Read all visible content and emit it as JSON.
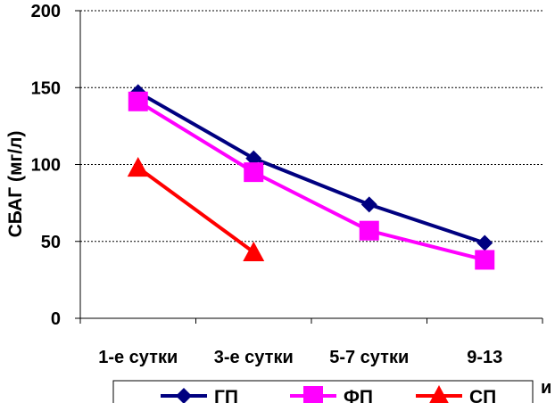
{
  "chart_data": {
    "type": "line",
    "categories": [
      "1-е сутки",
      "3-е сутки",
      "5-7 сутки",
      "9-13"
    ],
    "clipped_suffix": "и",
    "ylabel": "СБАГ (мг/л)",
    "ylim": [
      0,
      200
    ],
    "yticks": [
      "0",
      "50",
      "100",
      "150",
      "200"
    ],
    "grid": true,
    "legend_position": "bottom",
    "series": [
      {
        "name": "ГП",
        "color": "#000080",
        "marker": "diamond",
        "values": [
          147,
          104,
          74,
          49
        ]
      },
      {
        "name": "ФП",
        "color": "#FF00FF",
        "marker": "square",
        "values": [
          141,
          95,
          57,
          38
        ]
      },
      {
        "name": "СП",
        "color": "#FF0000",
        "marker": "triangle",
        "values": [
          98,
          43,
          null,
          null
        ]
      }
    ]
  }
}
